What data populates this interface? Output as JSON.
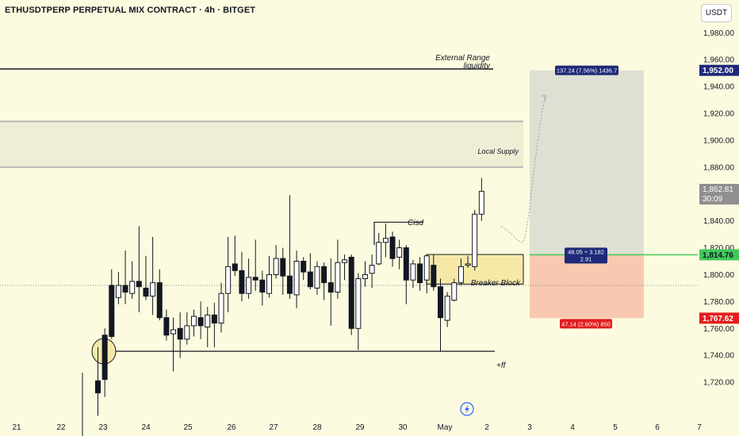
{
  "header": {
    "title": "ETHUSDTPERP PERPETUAL MIX CONTRACT · 4h · BITGET",
    "currency": "USDT"
  },
  "annotations": {
    "ext_range_1": "External Range",
    "ext_range_2": "liquidity",
    "local_supply": "Local Supply",
    "cisd": "Cisd",
    "breaker_block": "Breaker Block",
    "ff": "+ff",
    "target_label": "137.24 (7.56%) 1436.7",
    "rr_1": "48.05 ÷ 3.182",
    "rr_2": "2.91",
    "stop_label": "47.14 (2.60%) 850"
  },
  "price_tags": {
    "target": "1,952.00",
    "last": "1,862.81",
    "countdown": "30:09",
    "entry": "1,814.76",
    "stop": "1,767.62"
  },
  "colors": {
    "background": "#fdfbdf",
    "candle_body_up": "#ffffff",
    "candle_border": "#131722",
    "target_zone": "#dde0d3",
    "stop_zone": "#f9c8b0",
    "target_tag": "#1e2a78",
    "entry_tag": "#41c95a",
    "stop_tag": "#e01e1e",
    "last_tag": "#888888"
  },
  "chart_data": {
    "type": "candlestick",
    "y_ticks": [
      "1,720.00",
      "1,740.00",
      "1,760.00",
      "1,780.00",
      "1,800.00",
      "1,820.00",
      "1,840.00",
      "1,860.00",
      "1,880.00",
      "1,900.00",
      "1,920.00",
      "1,940.00",
      "1,960.00",
      "1,980.00"
    ],
    "y_values": [
      1720,
      1740,
      1760,
      1780,
      1800,
      1820,
      1840,
      1860,
      1880,
      1900,
      1920,
      1940,
      1960,
      1980
    ],
    "x_ticks": [
      "21",
      "22",
      "23",
      "24",
      "25",
      "26",
      "27",
      "28",
      "29",
      "30",
      "May",
      "2",
      "3",
      "4",
      "5",
      "6",
      "7"
    ],
    "ylim": [
      1709,
      2007
    ],
    "levels": {
      "external_range_liquidity": 1953,
      "local_supply_top": 1914,
      "local_supply_bottom": 1880,
      "ff_line": 1743,
      "cisd_line": 1839,
      "breaker_block_top": 1815,
      "breaker_block_bottom": 1793,
      "dotted_mid": 1792
    },
    "position": {
      "entry": 1814.76,
      "target": 1952.0,
      "stop": 1767.62,
      "last_price": 1862.81
    },
    "candles": [
      [
        1721,
        1712,
        1695,
        1746
      ],
      [
        1755,
        1722,
        1709,
        1760
      ],
      [
        1792,
        1754,
        1752,
        1804
      ],
      [
        1783,
        1792,
        1778,
        1802
      ],
      [
        1792,
        1787,
        1778,
        1818
      ],
      [
        1786,
        1795,
        1782,
        1810
      ],
      [
        1795,
        1791,
        1772,
        1836
      ],
      [
        1790,
        1784,
        1781,
        1814
      ],
      [
        1784,
        1794,
        1770,
        1828
      ],
      [
        1794,
        1768,
        1766,
        1804
      ],
      [
        1768,
        1755,
        1751,
        1774
      ],
      [
        1756,
        1759,
        1728,
        1768
      ],
      [
        1760,
        1752,
        1738,
        1772
      ],
      [
        1752,
        1762,
        1748,
        1772
      ],
      [
        1762,
        1769,
        1754,
        1774
      ],
      [
        1768,
        1762,
        1752,
        1780
      ],
      [
        1761,
        1770,
        1746,
        1776
      ],
      [
        1770,
        1764,
        1746,
        1779
      ],
      [
        1764,
        1786,
        1757,
        1794
      ],
      [
        1786,
        1806,
        1772,
        1828
      ],
      [
        1808,
        1803,
        1799,
        1829
      ],
      [
        1803,
        1786,
        1780,
        1817
      ],
      [
        1786,
        1798,
        1782,
        1812
      ],
      [
        1798,
        1796,
        1788,
        1826
      ],
      [
        1796,
        1787,
        1777,
        1803
      ],
      [
        1786,
        1800,
        1783,
        1814
      ],
      [
        1800,
        1812,
        1797,
        1822
      ],
      [
        1812,
        1799,
        1785,
        1820
      ],
      [
        1799,
        1786,
        1782,
        1859
      ],
      [
        1785,
        1810,
        1775,
        1818
      ],
      [
        1810,
        1802,
        1796,
        1813
      ],
      [
        1802,
        1791,
        1789,
        1816
      ],
      [
        1790,
        1806,
        1785,
        1810
      ],
      [
        1806,
        1794,
        1781,
        1809
      ],
      [
        1794,
        1787,
        1762,
        1812
      ],
      [
        1787,
        1809,
        1782,
        1826
      ],
      [
        1809,
        1811,
        1796,
        1815
      ],
      [
        1813,
        1760,
        1755,
        1815
      ],
      [
        1760,
        1797,
        1744,
        1801
      ],
      [
        1797,
        1800,
        1791,
        1810
      ],
      [
        1801,
        1807,
        1790,
        1815
      ],
      [
        1808,
        1824,
        1807,
        1831
      ],
      [
        1824,
        1827,
        1813,
        1838
      ],
      [
        1828,
        1812,
        1806,
        1832
      ],
      [
        1813,
        1820,
        1804,
        1826
      ],
      [
        1820,
        1796,
        1778,
        1822
      ],
      [
        1796,
        1808,
        1790,
        1811
      ],
      [
        1808,
        1794,
        1788,
        1813
      ],
      [
        1796,
        1814,
        1786,
        1815
      ],
      [
        1807,
        1791,
        1788,
        1815
      ],
      [
        1791,
        1768,
        1743,
        1797
      ],
      [
        1766,
        1784,
        1761,
        1787
      ],
      [
        1781,
        1794,
        1780,
        1797
      ],
      [
        1794,
        1806,
        1792,
        1812
      ],
      [
        1807,
        1808,
        1805,
        1814
      ],
      [
        1806,
        1845,
        1803,
        1848
      ],
      [
        1845,
        1862,
        1840,
        1872
      ]
    ]
  }
}
